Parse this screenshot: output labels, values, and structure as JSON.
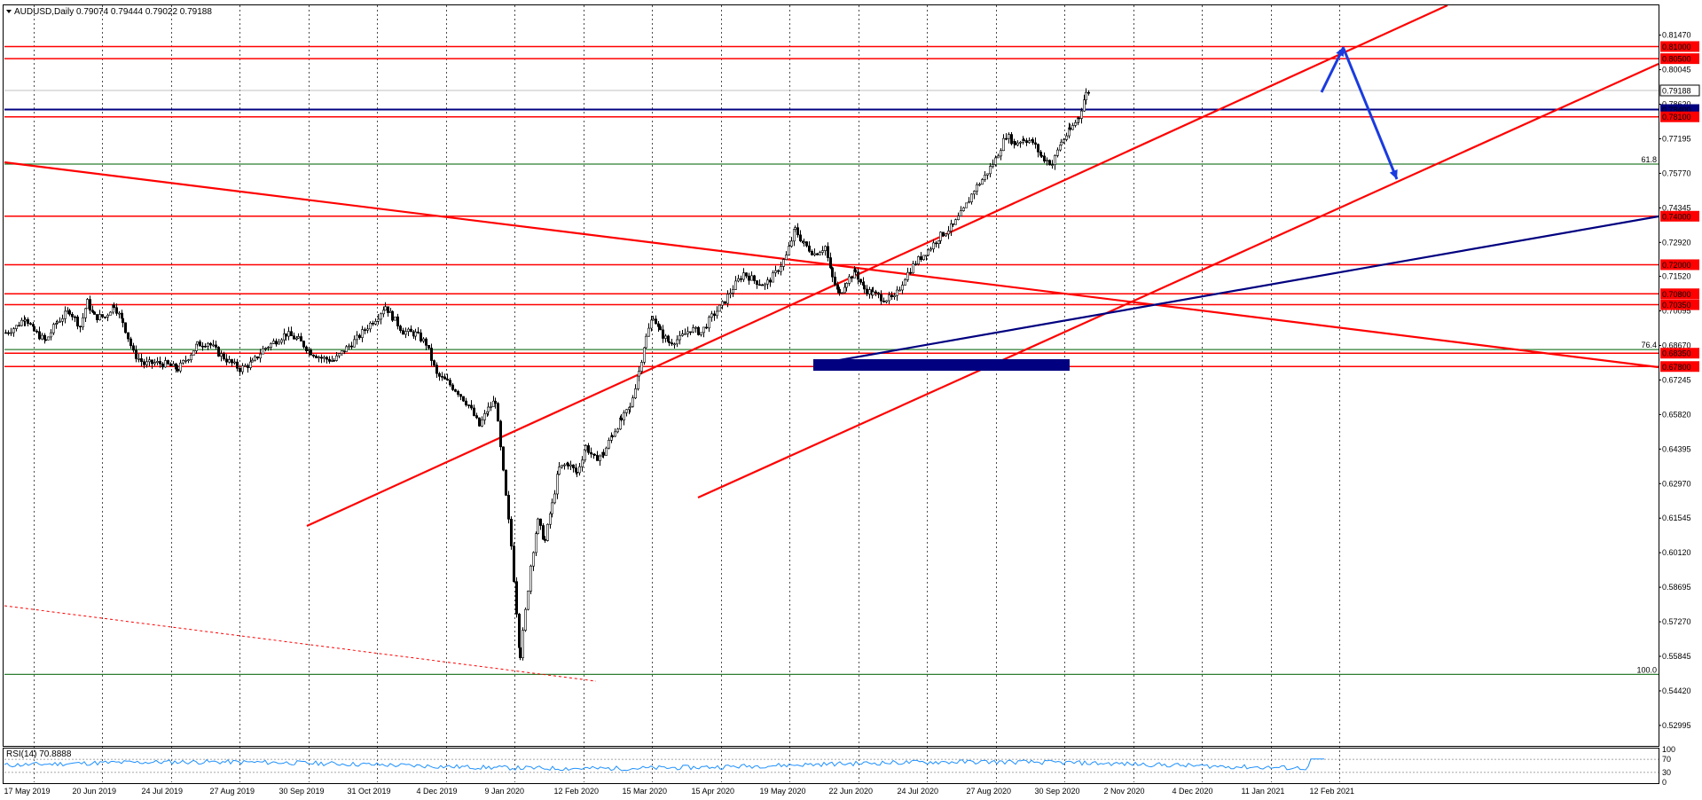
{
  "header": {
    "symbol_label": "AUDUSD,Daily",
    "ohlc": "0.79074 0.79444 0.79022 0.79188"
  },
  "rsi": {
    "label": "RSI(14) 70.8888",
    "levels": [
      {
        "label": "100",
        "value": 100
      },
      {
        "label": "70",
        "value": 70
      },
      {
        "label": "30",
        "value": 30
      },
      {
        "label": "0",
        "value": 0
      }
    ]
  },
  "chart_data": {
    "type": "candlestick",
    "instrument": "AUDUSD",
    "timeframe": "Daily",
    "current_price": 0.79188,
    "ylim": [
      0.5215,
      0.827
    ],
    "x_tick_labels": [
      "17 May 2019",
      "20 Jun 2019",
      "24 Jul 2019",
      "27 Aug 2019",
      "30 Sep 2019",
      "31 Oct 2019",
      "4 Dec 2019",
      "9 Jan 2020",
      "12 Feb 2020",
      "15 Mar 2020",
      "15 Apr 2020",
      "19 May 2020",
      "22 Jun 2020",
      "24 Jul 2020",
      "27 Aug 2020",
      "30 Sep 2020",
      "2 Nov 2020",
      "4 Dec 2020",
      "11 Jan 2021",
      "12 Feb 2021"
    ],
    "y_tick_labels": [
      "0.81470",
      "0.80045",
      "0.78620",
      "0.77195",
      "0.75770",
      "0.74345",
      "0.72920",
      "0.71520",
      "0.70095",
      "0.68670",
      "0.67245",
      "0.65820",
      "0.64395",
      "0.62970",
      "0.61545",
      "0.60120",
      "0.58695",
      "0.57270",
      "0.55845",
      "0.54420",
      "0.52995"
    ],
    "series": [
      {
        "values": [
          [
            0,
            0.692
          ],
          [
            12,
            0.6945
          ],
          [
            22,
            0.6985
          ],
          [
            32,
            0.6925
          ],
          [
            45,
            0.6885
          ],
          [
            58,
            0.6965
          ],
          [
            72,
            0.701
          ],
          [
            84,
            0.6945
          ],
          [
            92,
            0.7045
          ],
          [
            100,
            0.6985
          ],
          [
            112,
            0.6985
          ],
          [
            122,
            0.7035
          ],
          [
            132,
            0.6965
          ],
          [
            144,
            0.6835
          ],
          [
            156,
            0.679
          ],
          [
            168,
            0.6795
          ],
          [
            180,
            0.679
          ],
          [
            194,
            0.677
          ],
          [
            206,
            0.682
          ],
          [
            216,
            0.687
          ],
          [
            228,
            0.688
          ],
          [
            240,
            0.6835
          ],
          [
            252,
            0.68
          ],
          [
            264,
            0.677
          ],
          [
            278,
            0.6795
          ],
          [
            290,
            0.685
          ],
          [
            302,
            0.688
          ],
          [
            316,
            0.6915
          ],
          [
            330,
            0.689
          ],
          [
            344,
            0.684
          ],
          [
            356,
            0.6815
          ],
          [
            370,
            0.6805
          ],
          [
            384,
            0.6855
          ],
          [
            396,
            0.6895
          ],
          [
            408,
            0.6945
          ],
          [
            420,
            0.699
          ],
          [
            428,
            0.703
          ],
          [
            436,
            0.6985
          ],
          [
            448,
            0.6925
          ],
          [
            462,
            0.6915
          ],
          [
            474,
            0.6875
          ],
          [
            486,
            0.6745
          ],
          [
            498,
            0.6715
          ],
          [
            510,
            0.6675
          ],
          [
            522,
            0.662
          ],
          [
            534,
            0.6535
          ],
          [
            544,
            0.6605
          ],
          [
            552,
            0.664
          ],
          [
            558,
            0.644
          ],
          [
            564,
            0.624
          ],
          [
            570,
            0.604
          ],
          [
            576,
            0.577
          ],
          [
            580,
            0.559
          ],
          [
            586,
            0.577
          ],
          [
            592,
            0.596
          ],
          [
            600,
            0.614
          ],
          [
            608,
            0.606
          ],
          [
            616,
            0.621
          ],
          [
            624,
            0.636
          ],
          [
            634,
            0.638
          ],
          [
            644,
            0.634
          ],
          [
            654,
            0.645
          ],
          [
            664,
            0.64
          ],
          [
            674,
            0.642
          ],
          [
            684,
            0.65
          ],
          [
            694,
            0.656
          ],
          [
            704,
            0.661
          ],
          [
            714,
            0.676
          ],
          [
            722,
            0.69
          ],
          [
            730,
            0.699
          ],
          [
            738,
            0.692
          ],
          [
            748,
            0.688
          ],
          [
            760,
            0.6895
          ],
          [
            772,
            0.6935
          ],
          [
            784,
            0.692
          ],
          [
            796,
            0.6985
          ],
          [
            808,
            0.7035
          ],
          [
            820,
            0.7105
          ],
          [
            832,
            0.7165
          ],
          [
            844,
            0.7135
          ],
          [
            856,
            0.7115
          ],
          [
            868,
            0.7165
          ],
          [
            880,
            0.7235
          ],
          [
            890,
            0.7345
          ],
          [
            900,
            0.7285
          ],
          [
            912,
            0.7245
          ],
          [
            924,
            0.7275
          ],
          [
            932,
            0.7145
          ],
          [
            940,
            0.7075
          ],
          [
            948,
            0.7135
          ],
          [
            958,
            0.717
          ],
          [
            968,
            0.71
          ],
          [
            978,
            0.708
          ],
          [
            990,
            0.706
          ],
          [
            1002,
            0.706
          ],
          [
            1014,
            0.715
          ],
          [
            1026,
            0.721
          ],
          [
            1040,
            0.726
          ],
          [
            1054,
            0.732
          ],
          [
            1068,
            0.736
          ],
          [
            1080,
            0.7425
          ],
          [
            1092,
            0.751
          ],
          [
            1104,
            0.7565
          ],
          [
            1116,
            0.7635
          ],
          [
            1128,
            0.7735
          ],
          [
            1138,
            0.77
          ],
          [
            1148,
            0.772
          ],
          [
            1158,
            0.7705
          ],
          [
            1168,
            0.7645
          ],
          [
            1180,
            0.7615
          ],
          [
            1190,
            0.7705
          ],
          [
            1200,
            0.7755
          ],
          [
            1210,
            0.781
          ],
          [
            1218,
            0.7905
          ],
          [
            1222,
            0.792
          ]
        ]
      }
    ],
    "horizontal_levels": [
      {
        "label": "0.81000",
        "value": 0.81,
        "color": "#ff0000"
      },
      {
        "label": "0.80500",
        "value": 0.805,
        "color": "#ff0000"
      },
      {
        "label": "0.79188",
        "value": 0.79188,
        "color": "#000000",
        "kind": "current"
      },
      {
        "label": "0.78400",
        "value": 0.784,
        "color": "#000080"
      },
      {
        "label": "0.78100",
        "value": 0.781,
        "color": "#ff0000"
      },
      {
        "label": "0.74000",
        "value": 0.74,
        "color": "#ff0000"
      },
      {
        "label": "0.72000",
        "value": 0.72,
        "color": "#ff0000"
      },
      {
        "label": "0.70800",
        "value": 0.708,
        "color": "#ff0000"
      },
      {
        "label": "0.70350",
        "value": 0.7035,
        "color": "#ff0000"
      },
      {
        "label": "0.68350",
        "value": 0.6835,
        "color": "#ff0000"
      },
      {
        "label": "0.67800",
        "value": 0.678,
        "color": "#ff0000"
      }
    ],
    "fibonacci_levels": [
      {
        "label": "61.8",
        "value": 0.7615
      },
      {
        "label": "76.4",
        "value": 0.685
      },
      {
        "label": "100.0",
        "value": 0.551
      }
    ],
    "accent_colors": {
      "levels": "#ff0000",
      "trendline": "#000080",
      "projection_arrow": "#1a3be0",
      "fibonacci": "#006400",
      "rsi": "#1e90ff"
    }
  }
}
